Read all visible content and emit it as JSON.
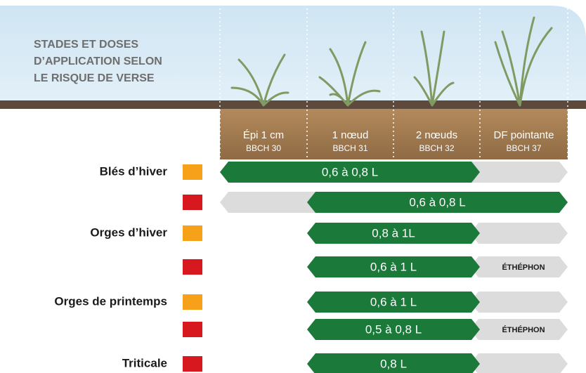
{
  "header": {
    "title": [
      "STADES ET DOSES",
      "D’APPLICATION SELON",
      "LE RISQUE DE VERSE"
    ]
  },
  "stages": [
    {
      "name": "Épi 1 cm",
      "code": "BBCH 30"
    },
    {
      "name": "1 nœud",
      "code": "BBCH 31"
    },
    {
      "name": "2 nœuds",
      "code": "BBCH 32"
    },
    {
      "name": "DF pointante",
      "code": "BBCH 37"
    }
  ],
  "groups": [
    {
      "label": "Blés d’hiver",
      "rows": [
        {
          "color": "#f7a11a",
          "dose": "0,6 à 0,8 L"
        },
        {
          "color": "#d7191f",
          "dose": "0,6 à 0,8 L"
        }
      ]
    },
    {
      "label": "Orges d’hiver",
      "rows": [
        {
          "color": "#f7a11a",
          "dose": "0,8 à  1L"
        },
        {
          "color": "#d7191f",
          "dose": "0,6 à 1 L",
          "note": "ÉTHÉPHON"
        }
      ]
    },
    {
      "label": "Orges de printemps",
      "rows": [
        {
          "color": "#f7a11a",
          "dose": "0,6 à 1 L"
        },
        {
          "color": "#d7191f",
          "dose": "0,5 à 0,8 L",
          "note": "ÉTHÉPHON"
        }
      ]
    },
    {
      "label": "Triticale",
      "rows": [
        {
          "color": "#d7191f",
          "dose": "0,8 L"
        }
      ]
    }
  ]
}
